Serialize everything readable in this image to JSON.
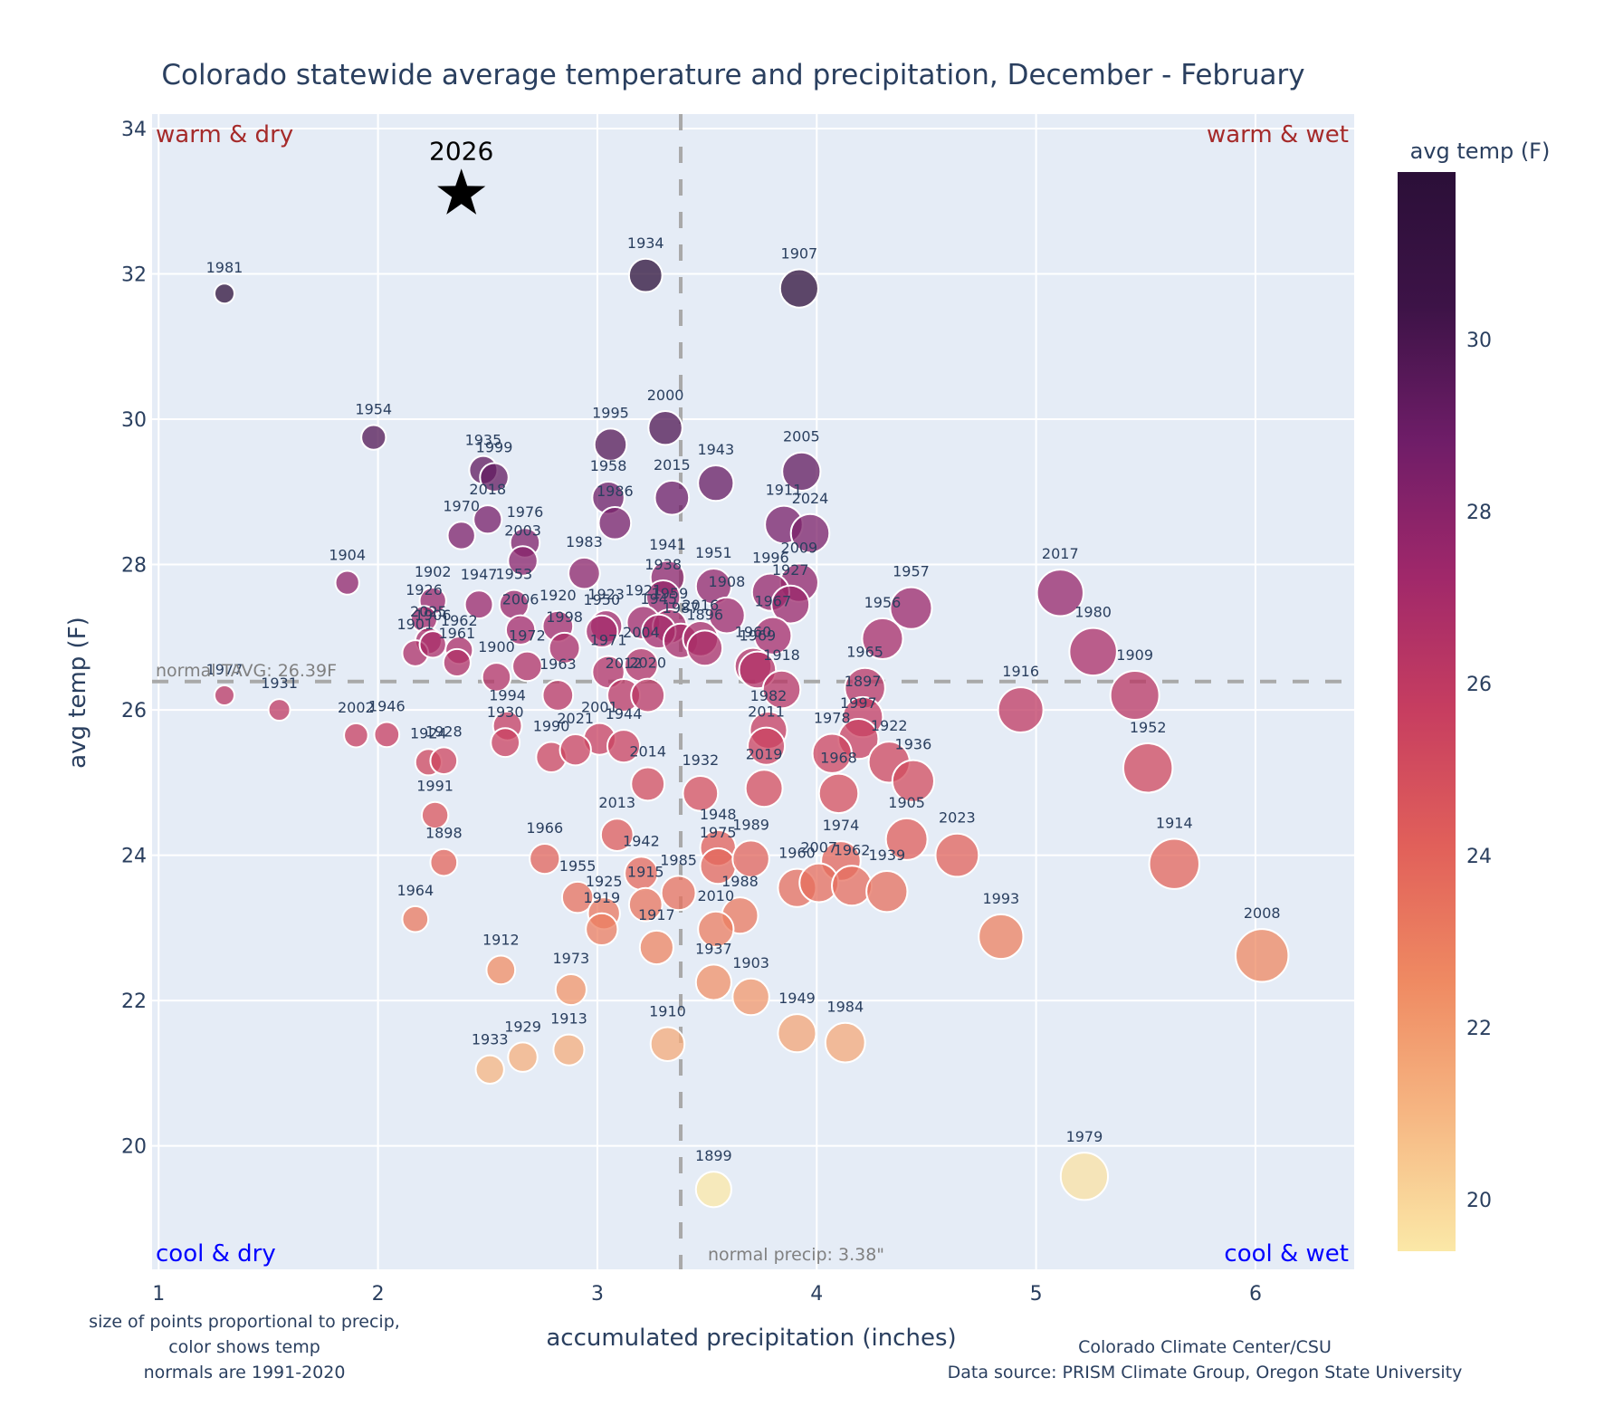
{
  "chart_data": {
    "type": "scatter",
    "title": "Colorado statewide average temperature and precipitation, December - February",
    "xlabel": "accumulated precipitation (inches)",
    "ylabel": "avg temp (F)",
    "xlim": [
      0.97,
      6.45
    ],
    "ylim": [
      18.3,
      34.2
    ],
    "xticks": [
      1,
      2,
      3,
      4,
      5,
      6
    ],
    "yticks": [
      20,
      22,
      24,
      26,
      28,
      30,
      32,
      34
    ],
    "grid": true,
    "colorbar": {
      "title": "avg temp (F)",
      "range": [
        19.4,
        31.95
      ],
      "ticks": [
        20,
        22,
        24,
        26,
        28,
        30
      ],
      "colorscale": [
        "#fbe8a7",
        "#f6b783",
        "#ef8a62",
        "#e1605a",
        "#c73e60",
        "#a0286a",
        "#6f1d68",
        "#3d1347",
        "#2b0f38"
      ]
    },
    "reference_lines": {
      "normal_temp": 26.39,
      "normal_temp_label": "normal TAVG: 26.39F",
      "normal_precip": 3.38,
      "normal_precip_label": "normal precip: 3.38\""
    },
    "quadrant_labels": {
      "top_left": "warm & dry",
      "top_right": "warm & wet",
      "bottom_left": "cool & dry",
      "bottom_right": "cool & wet",
      "warm_color": "#a52a2a",
      "cool_color": "#0000ff"
    },
    "highlight": {
      "year": "2026",
      "precip": 2.38,
      "temp": 33.1,
      "marker": "star"
    },
    "points": [
      {
        "year": "1981",
        "precip": 1.3,
        "temp": 31.73
      },
      {
        "year": "1934",
        "precip": 3.22,
        "temp": 31.98
      },
      {
        "year": "1907",
        "precip": 3.92,
        "temp": 31.8
      },
      {
        "year": "1954",
        "precip": 1.98,
        "temp": 29.75
      },
      {
        "year": "2000",
        "precip": 3.31,
        "temp": 29.88
      },
      {
        "year": "1995",
        "precip": 3.06,
        "temp": 29.65
      },
      {
        "year": "1935",
        "precip": 2.48,
        "temp": 29.3
      },
      {
        "year": "1999",
        "precip": 2.53,
        "temp": 29.2
      },
      {
        "year": "2005",
        "precip": 3.93,
        "temp": 29.28
      },
      {
        "year": "1943",
        "precip": 3.54,
        "temp": 29.12
      },
      {
        "year": "2018",
        "precip": 2.5,
        "temp": 28.62
      },
      {
        "year": "1958",
        "precip": 3.05,
        "temp": 28.92
      },
      {
        "year": "2015",
        "precip": 3.34,
        "temp": 28.92
      },
      {
        "year": "1986",
        "precip": 3.08,
        "temp": 28.57
      },
      {
        "year": "1970",
        "precip": 2.38,
        "temp": 28.4
      },
      {
        "year": "1976",
        "precip": 2.67,
        "temp": 28.3
      },
      {
        "year": "2003",
        "precip": 2.66,
        "temp": 28.05
      },
      {
        "year": "1911",
        "precip": 3.85,
        "temp": 28.55
      },
      {
        "year": "2024",
        "precip": 3.97,
        "temp": 28.43
      },
      {
        "year": "1983",
        "precip": 2.94,
        "temp": 27.88
      },
      {
        "year": "1904",
        "precip": 1.86,
        "temp": 27.75
      },
      {
        "year": "1941",
        "precip": 3.32,
        "temp": 27.82
      },
      {
        "year": "1938",
        "precip": 3.3,
        "temp": 27.55
      },
      {
        "year": "1951",
        "precip": 3.53,
        "temp": 27.7
      },
      {
        "year": "2009",
        "precip": 3.92,
        "temp": 27.75
      },
      {
        "year": "1996",
        "precip": 3.79,
        "temp": 27.62
      },
      {
        "year": "1927",
        "precip": 3.88,
        "temp": 27.45
      },
      {
        "year": "2017",
        "precip": 5.11,
        "temp": 27.61
      },
      {
        "year": "1957",
        "precip": 4.43,
        "temp": 27.4
      },
      {
        "year": "1902",
        "precip": 2.25,
        "temp": 27.5
      },
      {
        "year": "1947",
        "precip": 2.46,
        "temp": 27.45
      },
      {
        "year": "1953",
        "precip": 2.62,
        "temp": 27.45
      },
      {
        "year": "1926",
        "precip": 2.21,
        "temp": 27.25
      },
      {
        "year": "2006",
        "precip": 2.65,
        "temp": 27.1
      },
      {
        "year": "1920",
        "precip": 2.82,
        "temp": 27.15
      },
      {
        "year": "1923",
        "precip": 3.04,
        "temp": 27.15
      },
      {
        "year": "1950",
        "precip": 3.02,
        "temp": 27.08
      },
      {
        "year": "1921",
        "precip": 3.21,
        "temp": 27.2
      },
      {
        "year": "1959",
        "precip": 3.33,
        "temp": 27.15
      },
      {
        "year": "1945",
        "precip": 3.28,
        "temp": 27.08
      },
      {
        "year": "1908",
        "precip": 3.59,
        "temp": 27.3
      },
      {
        "year": "1987",
        "precip": 3.38,
        "temp": 26.95
      },
      {
        "year": "2016",
        "precip": 3.47,
        "temp": 26.98
      },
      {
        "year": "1896",
        "precip": 3.49,
        "temp": 26.85
      },
      {
        "year": "1967",
        "precip": 3.8,
        "temp": 27.02
      },
      {
        "year": "1960",
        "precip": 3.71,
        "temp": 26.6
      },
      {
        "year": "1969",
        "precip": 3.73,
        "temp": 26.55
      },
      {
        "year": "1956",
        "precip": 4.3,
        "temp": 26.98
      },
      {
        "year": "2025",
        "precip": 2.23,
        "temp": 26.95
      },
      {
        "year": "1901",
        "precip": 2.17,
        "temp": 26.78
      },
      {
        "year": "1906",
        "precip": 2.25,
        "temp": 26.9
      },
      {
        "year": "1962",
        "precip": 2.37,
        "temp": 26.82
      },
      {
        "year": "1961",
        "precip": 2.36,
        "temp": 26.65
      },
      {
        "year": "1972",
        "precip": 2.68,
        "temp": 26.6
      },
      {
        "year": "1998",
        "precip": 2.85,
        "temp": 26.85
      },
      {
        "year": "1971",
        "precip": 3.05,
        "temp": 26.52
      },
      {
        "year": "2004",
        "precip": 3.2,
        "temp": 26.62
      },
      {
        "year": "1900",
        "precip": 2.54,
        "temp": 26.45
      },
      {
        "year": "1963",
        "precip": 2.82,
        "temp": 26.2
      },
      {
        "year": "2012",
        "precip": 3.12,
        "temp": 26.2
      },
      {
        "year": "2020",
        "precip": 3.23,
        "temp": 26.2
      },
      {
        "year": "1918",
        "precip": 3.84,
        "temp": 26.28
      },
      {
        "year": "1965",
        "precip": 4.22,
        "temp": 26.3
      },
      {
        "year": "1916",
        "precip": 4.93,
        "temp": 26.0
      },
      {
        "year": "1980",
        "precip": 5.26,
        "temp": 26.8
      },
      {
        "year": "1909",
        "precip": 5.45,
        "temp": 26.2
      },
      {
        "year": "1977",
        "precip": 1.3,
        "temp": 26.2
      },
      {
        "year": "1931",
        "precip": 1.55,
        "temp": 26.0
      },
      {
        "year": "2002",
        "precip": 1.9,
        "temp": 25.65
      },
      {
        "year": "1946",
        "precip": 2.04,
        "temp": 25.66
      },
      {
        "year": "1924",
        "precip": 2.23,
        "temp": 25.28
      },
      {
        "year": "1928",
        "precip": 2.3,
        "temp": 25.3
      },
      {
        "year": "1994",
        "precip": 2.59,
        "temp": 25.78
      },
      {
        "year": "1930",
        "precip": 2.58,
        "temp": 25.55
      },
      {
        "year": "1990",
        "precip": 2.79,
        "temp": 25.35
      },
      {
        "year": "2001",
        "precip": 3.01,
        "temp": 25.6
      },
      {
        "year": "2021",
        "precip": 2.9,
        "temp": 25.45
      },
      {
        "year": "1944",
        "precip": 3.12,
        "temp": 25.5
      },
      {
        "year": "2014",
        "precip": 3.23,
        "temp": 24.98
      },
      {
        "year": "1932",
        "precip": 3.47,
        "temp": 24.85
      },
      {
        "year": "1982",
        "precip": 3.78,
        "temp": 25.72
      },
      {
        "year": "2011",
        "precip": 3.77,
        "temp": 25.5
      },
      {
        "year": "2019",
        "precip": 3.76,
        "temp": 24.92
      },
      {
        "year": "1897",
        "precip": 4.21,
        "temp": 25.9
      },
      {
        "year": "1997",
        "precip": 4.19,
        "temp": 25.6
      },
      {
        "year": "1978",
        "precip": 4.07,
        "temp": 25.4
      },
      {
        "year": "1922",
        "precip": 4.33,
        "temp": 25.28
      },
      {
        "year": "1968",
        "precip": 4.1,
        "temp": 24.85
      },
      {
        "year": "1936",
        "precip": 4.44,
        "temp": 25.02
      },
      {
        "year": "1952",
        "precip": 5.51,
        "temp": 25.2
      },
      {
        "year": "1991",
        "precip": 2.26,
        "temp": 24.55
      },
      {
        "year": "1898",
        "precip": 2.3,
        "temp": 23.9
      },
      {
        "year": "2013",
        "precip": 3.09,
        "temp": 24.28
      },
      {
        "year": "1948",
        "precip": 3.55,
        "temp": 24.1
      },
      {
        "year": "1975",
        "precip": 3.55,
        "temp": 23.85
      },
      {
        "year": "1989",
        "precip": 3.7,
        "temp": 23.95
      },
      {
        "year": "1966",
        "precip": 2.76,
        "temp": 23.95
      },
      {
        "year": "1942",
        "precip": 3.2,
        "temp": 23.75
      },
      {
        "year": "1905",
        "precip": 4.41,
        "temp": 24.22
      },
      {
        "year": "2023",
        "precip": 4.64,
        "temp": 24.0
      },
      {
        "year": "1914",
        "precip": 5.63,
        "temp": 23.88
      },
      {
        "year": "1974",
        "precip": 4.11,
        "temp": 23.92
      },
      {
        "year": "1960b",
        "precip": 3.91,
        "temp": 23.55
      },
      {
        "year": "2007",
        "precip": 4.01,
        "temp": 23.62
      },
      {
        "year": "1962b",
        "precip": 4.16,
        "temp": 23.58
      },
      {
        "year": "1939",
        "precip": 4.32,
        "temp": 23.5
      },
      {
        "year": "1955",
        "precip": 2.91,
        "temp": 23.42
      },
      {
        "year": "1915",
        "precip": 3.22,
        "temp": 23.32
      },
      {
        "year": "1985",
        "precip": 3.37,
        "temp": 23.48
      },
      {
        "year": "1925",
        "precip": 3.03,
        "temp": 23.2
      },
      {
        "year": "1919",
        "precip": 3.02,
        "temp": 22.98
      },
      {
        "year": "1917",
        "precip": 3.27,
        "temp": 22.73
      },
      {
        "year": "1988",
        "precip": 3.65,
        "temp": 23.17
      },
      {
        "year": "2010",
        "precip": 3.54,
        "temp": 22.98
      },
      {
        "year": "1964",
        "precip": 2.17,
        "temp": 23.12
      },
      {
        "year": "1993",
        "precip": 4.84,
        "temp": 22.88
      },
      {
        "year": "2008",
        "precip": 6.03,
        "temp": 22.62
      },
      {
        "year": "1912",
        "precip": 2.56,
        "temp": 22.42
      },
      {
        "year": "1973",
        "precip": 2.88,
        "temp": 22.15
      },
      {
        "year": "1937",
        "precip": 3.53,
        "temp": 22.25
      },
      {
        "year": "1903",
        "precip": 3.7,
        "temp": 22.05
      },
      {
        "year": "1949",
        "precip": 3.91,
        "temp": 21.55
      },
      {
        "year": "1984",
        "precip": 4.13,
        "temp": 21.42
      },
      {
        "year": "1910",
        "precip": 3.32,
        "temp": 21.4
      },
      {
        "year": "1913",
        "precip": 2.87,
        "temp": 21.32
      },
      {
        "year": "1929",
        "precip": 2.66,
        "temp": 21.22
      },
      {
        "year": "1933",
        "precip": 2.51,
        "temp": 21.05
      },
      {
        "year": "1899",
        "precip": 3.53,
        "temp": 19.4
      },
      {
        "year": "1979",
        "precip": 5.22,
        "temp": 19.58
      }
    ],
    "annotations": {
      "bottom_left": [
        "size of points proportional to precip,",
        "color shows temp",
        "normals are 1991-2020"
      ],
      "bottom_right": [
        "Colorado Climate Center/CSU",
        "Data source: PRISM Climate Group, Oregon State University"
      ]
    }
  }
}
